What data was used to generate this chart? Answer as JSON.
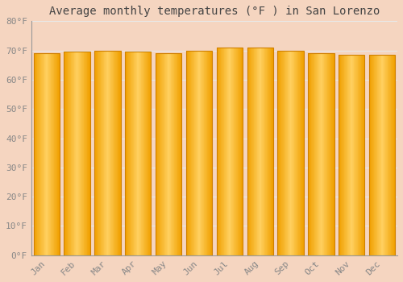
{
  "title": "Average monthly temperatures (°F ) in San Lorenzo",
  "months": [
    "Jan",
    "Feb",
    "Mar",
    "Apr",
    "May",
    "Jun",
    "Jul",
    "Aug",
    "Sep",
    "Oct",
    "Nov",
    "Dec"
  ],
  "values": [
    69,
    69.5,
    70,
    69.5,
    69,
    70,
    71,
    71,
    70,
    69,
    68.5,
    68.5
  ],
  "ylim": [
    0,
    80
  ],
  "yticks": [
    0,
    10,
    20,
    30,
    40,
    50,
    60,
    70,
    80
  ],
  "ytick_labels": [
    "0°F",
    "10°F",
    "20°F",
    "30°F",
    "40°F",
    "50°F",
    "60°F",
    "70°F",
    "80°F"
  ],
  "bar_color_center": "#FFD060",
  "bar_color_edge": "#F0A000",
  "background_color": "#F5D5C0",
  "plot_bg_color": "#F5D5C0",
  "grid_color": "#E8E8E8",
  "title_fontsize": 10,
  "tick_fontsize": 8,
  "title_color": "#444444",
  "tick_color": "#888888",
  "bar_edge_color": "#D08000",
  "bar_width": 0.85
}
